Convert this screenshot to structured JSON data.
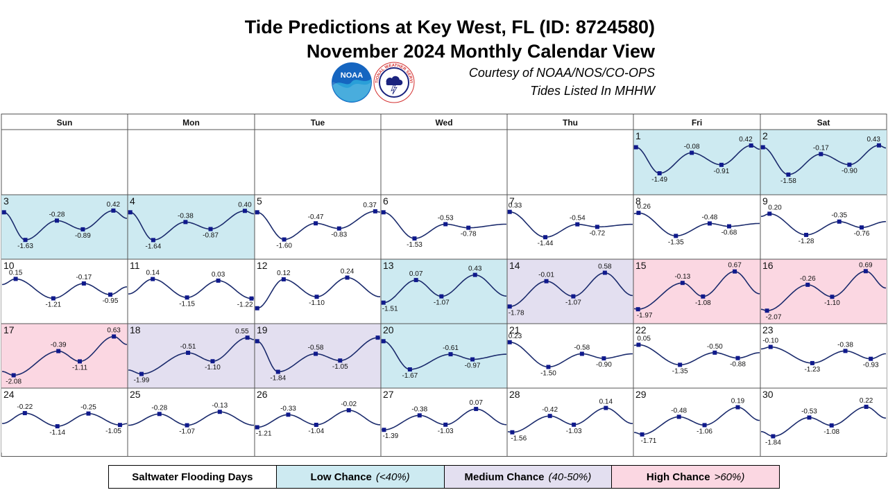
{
  "header": {
    "title_line1": "Tide Predictions at Key West, FL (ID: 8724580)",
    "title_line2": "November 2024 Monthly Calendar View",
    "credit_line1": "Courtesy of NOAA/NOS/CO-OPS",
    "credit_line2": "Tides Listed In MHHW",
    "noaa_logo_text": "NOAA",
    "nws_logo_text": "NATIONAL WEATHER SERVICE"
  },
  "legend": {
    "label": "Saltwater Flooding Days",
    "low_label": "Low Chance",
    "low_range": "(<40%)",
    "medium_label": "Medium Chance",
    "medium_range": "(40-50%)",
    "high_label": "High Chance",
    "high_range": ">60%)"
  },
  "colors": {
    "low": "#cdeaf1",
    "medium": "#e3dff0",
    "high": "#fbd7e2",
    "curve": "#1a2a6c",
    "marker": "#101a8c",
    "grid": "#555555"
  },
  "chart_data": {
    "type": "line",
    "title": "Tide Predictions at Key West, FL (ID: 8724580)",
    "subtitle": "November 2024 Monthly Calendar View",
    "weekdays": [
      "Sun",
      "Mon",
      "Tue",
      "Wed",
      "Thu",
      "Fri",
      "Sat"
    ],
    "first_weekday_index": 5,
    "units": "ft (MHHW)",
    "days": [
      {
        "day": "1",
        "category": "low",
        "extremes": [
          {
            "h": 0.1,
            "v": null
          },
          {
            "h": 4.7,
            "v": -1.49
          },
          {
            "h": 11.0,
            "v": -0.08
          },
          {
            "h": 16.8,
            "v": -0.91
          },
          {
            "h": 22.6,
            "v": 0.42
          }
        ]
      },
      {
        "day": "2",
        "category": "low",
        "extremes": [
          {
            "h": 0.1,
            "v": null
          },
          {
            "h": 5.1,
            "v": -1.58
          },
          {
            "h": 11.5,
            "v": -0.17
          },
          {
            "h": 17.1,
            "v": -0.9
          },
          {
            "h": 22.9,
            "v": 0.43
          }
        ]
      },
      {
        "day": "3",
        "category": "low",
        "extremes": [
          {
            "h": 0.1,
            "v": null
          },
          {
            "h": 4.3,
            "v": -1.63
          },
          {
            "h": 10.5,
            "v": -0.28
          },
          {
            "h": 15.6,
            "v": -0.89
          },
          {
            "h": 21.6,
            "v": 0.42
          }
        ]
      },
      {
        "day": "4",
        "category": "low",
        "extremes": [
          {
            "h": 0.1,
            "v": null
          },
          {
            "h": 4.6,
            "v": -1.64
          },
          {
            "h": 10.9,
            "v": -0.38
          },
          {
            "h": 15.8,
            "v": -0.87
          },
          {
            "h": 22.5,
            "v": 0.4
          }
        ]
      },
      {
        "day": "5",
        "category": null,
        "extremes": [
          {
            "h": 0.1,
            "v": null
          },
          {
            "h": 5.4,
            "v": -1.6
          },
          {
            "h": 11.6,
            "v": -0.47
          },
          {
            "h": 16.2,
            "v": -0.83
          },
          {
            "h": 23.3,
            "v": 0.37
          }
        ]
      },
      {
        "day": "6",
        "category": null,
        "extremes": [
          {
            "h": 0.1,
            "v": null
          },
          {
            "h": 6.2,
            "v": -1.53
          },
          {
            "h": 12.3,
            "v": -0.53
          },
          {
            "h": 16.8,
            "v": -0.78
          }
        ]
      },
      {
        "day": "7",
        "category": null,
        "extremes": [
          {
            "h": 0.1,
            "v": 0.33
          },
          {
            "h": 7.1,
            "v": -1.44
          },
          {
            "h": 13.4,
            "v": -0.54
          },
          {
            "h": 17.3,
            "v": -0.72
          }
        ]
      },
      {
        "day": "8",
        "category": null,
        "extremes": [
          {
            "h": 0.6,
            "v": 0.26
          },
          {
            "h": 7.9,
            "v": -1.35
          },
          {
            "h": 14.5,
            "v": -0.48
          },
          {
            "h": 18.3,
            "v": -0.68
          }
        ]
      },
      {
        "day": "9",
        "category": null,
        "extremes": [
          {
            "h": 1.4,
            "v": 0.2
          },
          {
            "h": 8.6,
            "v": -1.28
          },
          {
            "h": 15.1,
            "v": -0.35
          },
          {
            "h": 19.5,
            "v": -0.76
          }
        ]
      },
      {
        "day": "10",
        "category": null,
        "extremes": [
          {
            "h": 2.4,
            "v": 0.15
          },
          {
            "h": 9.8,
            "v": -1.21
          },
          {
            "h": 15.8,
            "v": -0.17
          },
          {
            "h": 21.0,
            "v": -0.95
          }
        ]
      },
      {
        "day": "11",
        "category": null,
        "extremes": [
          {
            "h": 4.5,
            "v": 0.14
          },
          {
            "h": 11.2,
            "v": -1.15
          },
          {
            "h": 17.3,
            "v": 0.03
          },
          {
            "h": 23.8,
            "v": -1.22
          }
        ]
      },
      {
        "day": "12",
        "category": null,
        "extremes": [
          {
            "h": 0.1,
            "v": null
          },
          {
            "h": 5.3,
            "v": 0.12
          },
          {
            "h": 11.8,
            "v": -1.1
          },
          {
            "h": 17.8,
            "v": 0.24
          }
        ]
      },
      {
        "day": "13",
        "category": "low",
        "extremes": [
          {
            "h": 0.1,
            "v": -1.51
          },
          {
            "h": 6.5,
            "v": 0.07
          },
          {
            "h": 11.5,
            "v": -1.07
          },
          {
            "h": 18.1,
            "v": 0.43
          }
        ]
      },
      {
        "day": "14",
        "category": "medium",
        "extremes": [
          {
            "h": 0.1,
            "v": -1.78
          },
          {
            "h": 7.3,
            "v": -0.01
          },
          {
            "h": 12.6,
            "v": -1.07
          },
          {
            "h": 18.8,
            "v": 0.58
          }
        ]
      },
      {
        "day": "15",
        "category": "high",
        "extremes": [
          {
            "h": 0.5,
            "v": -1.97
          },
          {
            "h": 9.2,
            "v": -0.13
          },
          {
            "h": 13.2,
            "v": -1.08
          },
          {
            "h": 19.4,
            "v": 0.67
          }
        ]
      },
      {
        "day": "16",
        "category": "high",
        "extremes": [
          {
            "h": 0.9,
            "v": -2.07
          },
          {
            "h": 8.9,
            "v": -0.26
          },
          {
            "h": 13.7,
            "v": -1.1
          },
          {
            "h": 20.3,
            "v": 0.69
          }
        ]
      },
      {
        "day": "17",
        "category": "high",
        "extremes": [
          {
            "h": 2.0,
            "v": -2.08
          },
          {
            "h": 10.8,
            "v": -0.39
          },
          {
            "h": 15.0,
            "v": -1.11
          },
          {
            "h": 21.7,
            "v": 0.63
          }
        ]
      },
      {
        "day": "18",
        "category": "medium",
        "extremes": [
          {
            "h": 2.3,
            "v": -1.99
          },
          {
            "h": 11.4,
            "v": -0.51
          },
          {
            "h": 16.2,
            "v": -1.1
          },
          {
            "h": 23.0,
            "v": 0.55
          }
        ]
      },
      {
        "day": "19",
        "category": "medium",
        "extremes": [
          {
            "h": 0.1,
            "v": null
          },
          {
            "h": 4.2,
            "v": -1.84
          },
          {
            "h": 11.6,
            "v": -0.58
          },
          {
            "h": 16.4,
            "v": -1.05
          },
          {
            "h": 23.8,
            "v": null
          }
        ]
      },
      {
        "day": "20",
        "category": "low",
        "extremes": [
          {
            "h": 0.1,
            "v": null
          },
          {
            "h": 5.3,
            "v": -1.67
          },
          {
            "h": 13.3,
            "v": -0.61
          },
          {
            "h": 17.6,
            "v": -0.97
          }
        ]
      },
      {
        "day": "21",
        "category": null,
        "extremes": [
          {
            "h": 0.1,
            "v": 0.23
          },
          {
            "h": 7.7,
            "v": -1.5
          },
          {
            "h": 14.3,
            "v": -0.58
          },
          {
            "h": 18.6,
            "v": -0.9
          }
        ]
      },
      {
        "day": "22",
        "category": null,
        "extremes": [
          {
            "h": 0.6,
            "v": 0.05
          },
          {
            "h": 8.7,
            "v": -1.35
          },
          {
            "h": 15.5,
            "v": -0.5
          },
          {
            "h": 20.0,
            "v": -0.88
          }
        ]
      },
      {
        "day": "23",
        "category": null,
        "extremes": [
          {
            "h": 1.6,
            "v": -0.1
          },
          {
            "h": 9.8,
            "v": -1.23
          },
          {
            "h": 16.3,
            "v": -0.38
          },
          {
            "h": 21.3,
            "v": -0.93
          }
        ]
      },
      {
        "day": "24",
        "category": null,
        "extremes": [
          {
            "h": 4.2,
            "v": -0.22
          },
          {
            "h": 10.6,
            "v": -1.14
          },
          {
            "h": 16.7,
            "v": -0.25
          },
          {
            "h": 22.9,
            "v": -1.05
          }
        ]
      },
      {
        "day": "25",
        "category": null,
        "extremes": [
          {
            "h": 5.8,
            "v": -0.28
          },
          {
            "h": 11.2,
            "v": -1.07
          },
          {
            "h": 17.6,
            "v": -0.13
          }
        ]
      },
      {
        "day": "26",
        "category": null,
        "extremes": [
          {
            "h": 0.1,
            "v": -1.21
          },
          {
            "h": 6.2,
            "v": -0.33
          },
          {
            "h": 11.7,
            "v": -1.04
          },
          {
            "h": 18.1,
            "v": -0.02
          }
        ]
      },
      {
        "day": "27",
        "category": null,
        "extremes": [
          {
            "h": 0.2,
            "v": -1.39
          },
          {
            "h": 7.2,
            "v": -0.38
          },
          {
            "h": 12.3,
            "v": -1.03
          },
          {
            "h": 18.3,
            "v": 0.07
          }
        ]
      },
      {
        "day": "28",
        "category": null,
        "extremes": [
          {
            "h": 0.6,
            "v": -1.56
          },
          {
            "h": 8.0,
            "v": -0.42
          },
          {
            "h": 12.7,
            "v": -1.03
          },
          {
            "h": 19.0,
            "v": 0.14
          }
        ]
      },
      {
        "day": "29",
        "category": null,
        "extremes": [
          {
            "h": 1.3,
            "v": -1.71
          },
          {
            "h": 8.5,
            "v": -0.48
          },
          {
            "h": 13.5,
            "v": -1.06
          },
          {
            "h": 20.0,
            "v": 0.19
          }
        ]
      },
      {
        "day": "30",
        "category": null,
        "extremes": [
          {
            "h": 2.1,
            "v": -1.84
          },
          {
            "h": 9.2,
            "v": -0.53
          },
          {
            "h": 13.6,
            "v": -1.08
          },
          {
            "h": 20.4,
            "v": 0.22
          }
        ]
      }
    ]
  }
}
